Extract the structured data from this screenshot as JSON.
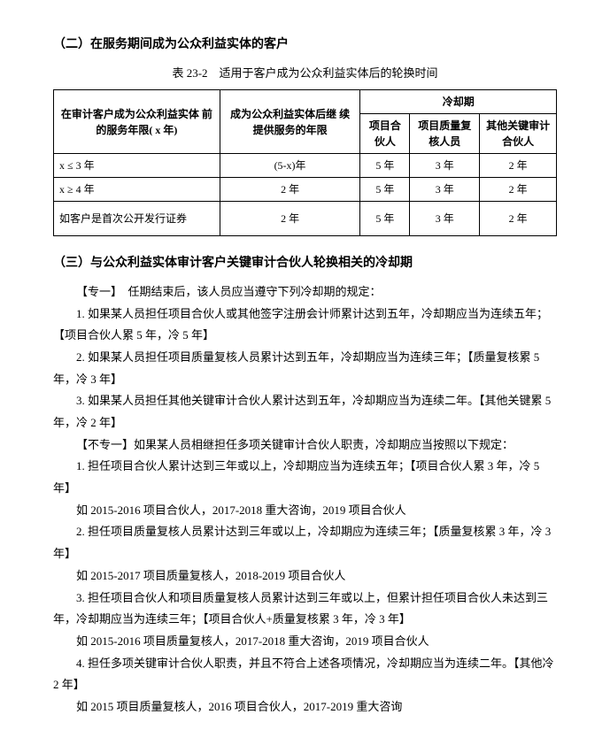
{
  "section2": {
    "title": "（二）在服务期间成为公众利益实体的客户",
    "tableCaption": "表 23-2　适用于客户成为公众利益实体后的轮换时间",
    "table": {
      "head": {
        "col1": "在审计客户成为公众利益实体\n前的服务年限( x 年)",
        "col2": "成为公众利益实体后继\n续提供服务的年限",
        "col3": "冷却期",
        "sub1": "项目合伙人",
        "sub2": "项目质量复核人员",
        "sub3": "其他关键审计合伙人"
      },
      "rows": [
        {
          "c1": "x ≤ 3 年",
          "c2": "(5-x)年",
          "c3": "5 年",
          "c4": "3 年",
          "c5": "2 年"
        },
        {
          "c1": "x ≥ 4 年",
          "c2": "2 年",
          "c3": "5 年",
          "c4": "3 年",
          "c5": "2 年"
        },
        {
          "c1": "如客户是首次公开发行证券",
          "c2": "2 年",
          "c3": "5 年",
          "c4": "3 年",
          "c5": "2 年"
        }
      ]
    }
  },
  "section3": {
    "title": "（三）与公众利益实体审计客户关键审计合伙人轮换相关的冷却期",
    "paras": [
      "【专一】　任期结束后，该人员应当遵守下列冷却期的规定：",
      "1. 如果某人员担任项目合伙人或其他签字注册会计师累计达到五年，冷却期应当为连续五年；【项目合伙人累 5 年，冷 5 年】",
      "2. 如果某人员担任项目质量复核人员累计达到五年，冷却期应当为连续三年；【质量复核累 5 年，冷 3 年】",
      "3. 如果某人员担任其他关键审计合伙人累计达到五年，冷却期应当为连续二年。【其他关键累 5 年，冷 2 年】",
      "【不专一】如果某人员相继担任多项关键审计合伙人职责，冷却期应当按照以下规定：",
      "1. 担任项目合伙人累计达到三年或以上，冷却期应当为连续五年；【项目合伙人累 3 年，冷 5 年】",
      "如 2015-2016 项目合伙人，2017-2018 重大咨询，2019 项目合伙人",
      "2. 担任项目质量复核人员累计达到三年或以上，冷却期应为连续三年；【质量复核累 3 年，冷 3 年】",
      "如 2015-2017 项目质量复核人，2018-2019 项目合伙人",
      "3. 担任项目合伙人和项目质量复核人员累计达到三年或以上，但累计担任项目合伙人未达到三年，冷却期应当为连续三年；【项目合伙人+质量复核累 3 年，冷 3 年】",
      "如 2015-2016 项目质量复核人，2017-2018 重大咨询，2019 项目合伙人",
      "4. 担任多项关键审计合伙人职责，并且不符合上述各项情况，冷却期应当为连续二年。【其他冷 2 年】",
      "如 2015 项目质量复核人，2016 项目合伙人，2017-2019 重大咨询"
    ]
  }
}
